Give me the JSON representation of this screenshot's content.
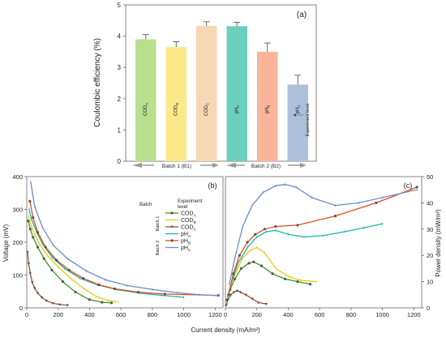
{
  "chart_data": [
    {
      "type": "bar",
      "panel_label": "(a)",
      "ylabel": "Coulombic efficiency (%)",
      "ylim": [
        0,
        5
      ],
      "yticks": [
        "0",
        "1",
        "2",
        "3",
        "4",
        "5"
      ],
      "categories": [
        "COD_A",
        "COD_B",
        "COD_C",
        "pH_A",
        "pH_B",
        "pH_C"
      ],
      "bar_labels": [
        {
          "base": "COD",
          "sub": "A"
        },
        {
          "base": "COD",
          "sub": "B"
        },
        {
          "base": "COD",
          "sub": "C"
        },
        {
          "base": "pH",
          "sub": "A"
        },
        {
          "base": "pH",
          "sub": "B"
        },
        {
          "base": "pH",
          "sub": "C"
        }
      ],
      "values": [
        3.9,
        3.65,
        4.33,
        4.32,
        3.5,
        2.45
      ],
      "errors": [
        0.15,
        0.17,
        0.13,
        0.12,
        0.28,
        0.3
      ],
      "colors": [
        "#b8e08e",
        "#fde98a",
        "#f5d7b3",
        "#6ccfbd",
        "#f9b499",
        "#aebfdc"
      ],
      "groups": [
        "Batch 1 (B1)",
        "Batch 2 (B2)"
      ],
      "annotation": "Experiment level"
    },
    {
      "type": "line",
      "panel_label": "(b)",
      "xlabel": "Current density (mA/m²)",
      "ylabel": "Voltage (mV)",
      "xlim": [
        0,
        1250
      ],
      "ylim": [
        0,
        400
      ],
      "xticks": [
        "0",
        "200",
        "400",
        "600",
        "800",
        "1000",
        "1200"
      ],
      "yticks": [
        "0",
        "100",
        "200",
        "300",
        "400"
      ],
      "legend": {
        "batch_header": "Batch",
        "level_header": "Experiment level",
        "batch1": "Batch 1",
        "batch2": "Batch 2"
      },
      "series": [
        {
          "name": "COD_A",
          "base": "COD",
          "sub": "A",
          "color": "#3a9a1e",
          "marker": "circle",
          "x": [
            10,
            22,
            40,
            70,
            110,
            160,
            230,
            310,
            400,
            480,
            540
          ],
          "y": [
            265,
            240,
            215,
            185,
            150,
            115,
            80,
            48,
            25,
            17,
            15
          ]
        },
        {
          "name": "COD_B",
          "base": "COD",
          "sub": "B",
          "color": "#e8c81a",
          "marker": "line",
          "x": [
            12,
            25,
            45,
            80,
            130,
            200,
            280,
            360,
            440,
            520,
            580
          ],
          "y": [
            280,
            255,
            230,
            195,
            160,
            125,
            90,
            60,
            35,
            22,
            18
          ]
        },
        {
          "name": "COD_C",
          "base": "COD",
          "sub": "C",
          "color": "#a0522d",
          "marker": "triangle",
          "x": [
            5,
            12,
            22,
            35,
            50,
            70,
            95,
            125,
            165,
            210,
            260
          ],
          "y": [
            170,
            135,
            105,
            78,
            60,
            45,
            32,
            22,
            14,
            10,
            8
          ]
        },
        {
          "name": "pH_A",
          "base": "pH",
          "sub": "A",
          "color": "#18b5a0",
          "marker": "line",
          "x": [
            15,
            30,
            60,
            100,
            160,
            240,
            340,
            450,
            580,
            720,
            860,
            1000
          ],
          "y": [
            300,
            270,
            235,
            195,
            155,
            120,
            90,
            70,
            55,
            45,
            38,
            32
          ]
        },
        {
          "name": "pH_B",
          "base": "pH",
          "sub": "B",
          "color": "#e04e1a",
          "marker": "circle",
          "x": [
            20,
            40,
            70,
            120,
            190,
            270,
            360,
            460,
            560,
            710,
            880,
            1220
          ],
          "y": [
            325,
            275,
            230,
            185,
            145,
            115,
            90,
            70,
            58,
            48,
            42,
            38
          ]
        },
        {
          "name": "pH_C",
          "base": "pH",
          "sub": "C",
          "color": "#6b8ccc",
          "marker": "line",
          "x": [
            25,
            50,
            100,
            170,
            260,
            380,
            500,
            640,
            800,
            960,
            1100,
            1220
          ],
          "y": [
            385,
            310,
            245,
            190,
            150,
            112,
            86,
            68,
            56,
            46,
            40,
            37
          ]
        }
      ]
    },
    {
      "type": "line",
      "panel_label": "(c)",
      "ylabel": "Power density (mW/m²)",
      "xlim": [
        0,
        1250
      ],
      "ylim": [
        0,
        50
      ],
      "xticks": [
        "0",
        "200",
        "400",
        "600",
        "800",
        "1000",
        "1200"
      ],
      "yticks": [
        "0",
        "10",
        "20",
        "30",
        "40",
        "50"
      ],
      "series": [
        {
          "name": "COD_A",
          "color": "#3a9a1e",
          "marker": "circle",
          "x": [
            10,
            30,
            60,
            100,
            150,
            180,
            230,
            300,
            380,
            460,
            540
          ],
          "y": [
            3,
            7,
            11,
            15,
            17,
            17.5,
            16,
            13,
            11,
            10,
            9
          ]
        },
        {
          "name": "COD_B",
          "color": "#e8c81a",
          "marker": "line",
          "x": [
            12,
            35,
            70,
            110,
            160,
            200,
            250,
            320,
            400,
            480,
            580
          ],
          "y": [
            4,
            9,
            14,
            19,
            22,
            23,
            21,
            15,
            12,
            10.5,
            10
          ]
        },
        {
          "name": "COD_C",
          "color": "#a0522d",
          "marker": "triangle",
          "x": [
            5,
            15,
            35,
            55,
            75,
            95,
            130,
            170,
            210,
            260
          ],
          "y": [
            1,
            3,
            5,
            6,
            6.5,
            6,
            5,
            3.5,
            2,
            1.5
          ]
        },
        {
          "name": "pH_A",
          "color": "#18b5a0",
          "marker": "line",
          "x": [
            15,
            40,
            80,
            140,
            200,
            260,
            320,
            400,
            500,
            620,
            760,
            880,
            1000
          ],
          "y": [
            4,
            10,
            17,
            23,
            27,
            29,
            29.5,
            28,
            27,
            27.5,
            29,
            30.5,
            32
          ]
        },
        {
          "name": "pH_B",
          "color": "#e04e1a",
          "marker": "circle",
          "x": [
            20,
            50,
            90,
            140,
            190,
            250,
            320,
            460,
            700,
            960,
            1220
          ],
          "y": [
            5,
            13,
            20,
            25,
            28,
            30,
            31,
            31.5,
            35,
            40,
            46
          ]
        },
        {
          "name": "pH_C",
          "color": "#6b8ccc",
          "marker": "line",
          "x": [
            25,
            60,
            110,
            170,
            240,
            320,
            380,
            450,
            550,
            700,
            850,
            1000,
            1220
          ],
          "y": [
            9,
            19,
            31,
            39,
            44,
            46.5,
            47,
            46,
            42,
            39,
            40,
            42,
            45
          ]
        }
      ]
    }
  ]
}
